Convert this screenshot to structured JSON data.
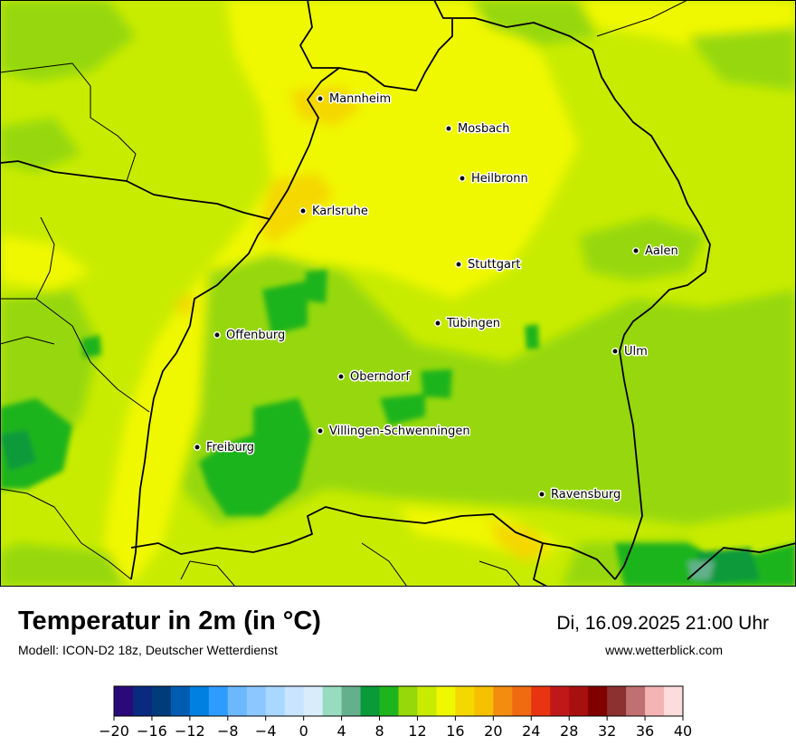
{
  "title": "Temperatur in 2m (in °C)",
  "model_info": "Modell: ICON-D2 18z, Deutscher Wetterdienst",
  "datetime": "Di, 16.09.2025 21:00 Uhr",
  "website": "www.wetterblick.com",
  "cities": [
    {
      "name": "Mannheim"
    },
    {
      "name": "Mosbach"
    },
    {
      "name": "Heilbronn"
    },
    {
      "name": "Karlsruhe"
    },
    {
      "name": "Aalen"
    },
    {
      "name": "Stuttgart"
    },
    {
      "name": "Tübingen"
    },
    {
      "name": "Offenburg"
    },
    {
      "name": "Ulm"
    },
    {
      "name": "Oberndorf"
    },
    {
      "name": "Villingen-Schwenningen"
    },
    {
      "name": "Freiburg"
    },
    {
      "name": "Ravensburg"
    }
  ],
  "legend": {
    "min": -20,
    "max": 40,
    "step": 2,
    "tick_labels": [
      "−20",
      "−16",
      "−12",
      "−8",
      "−4",
      "0",
      "4",
      "8",
      "12",
      "16",
      "20",
      "24",
      "28",
      "32",
      "36",
      "40"
    ],
    "colors": [
      "#2a0a7a",
      "#0a2a80",
      "#003c7a",
      "#005cb0",
      "#0080e0",
      "#2e9cff",
      "#6cb8ff",
      "#8cc8ff",
      "#a8d8ff",
      "#c8e4ff",
      "#d8ecfa",
      "#98dcc0",
      "#64b08c",
      "#0a9a3a",
      "#1eb41e",
      "#96d80a",
      "#c8ec00",
      "#f0f800",
      "#f4d800",
      "#f4c000",
      "#f48c10",
      "#f06a10",
      "#e83410",
      "#c01818",
      "#a81010",
      "#800000",
      "#8c3030",
      "#c07070",
      "#f4b4b4",
      "#fcdcdc"
    ]
  }
}
